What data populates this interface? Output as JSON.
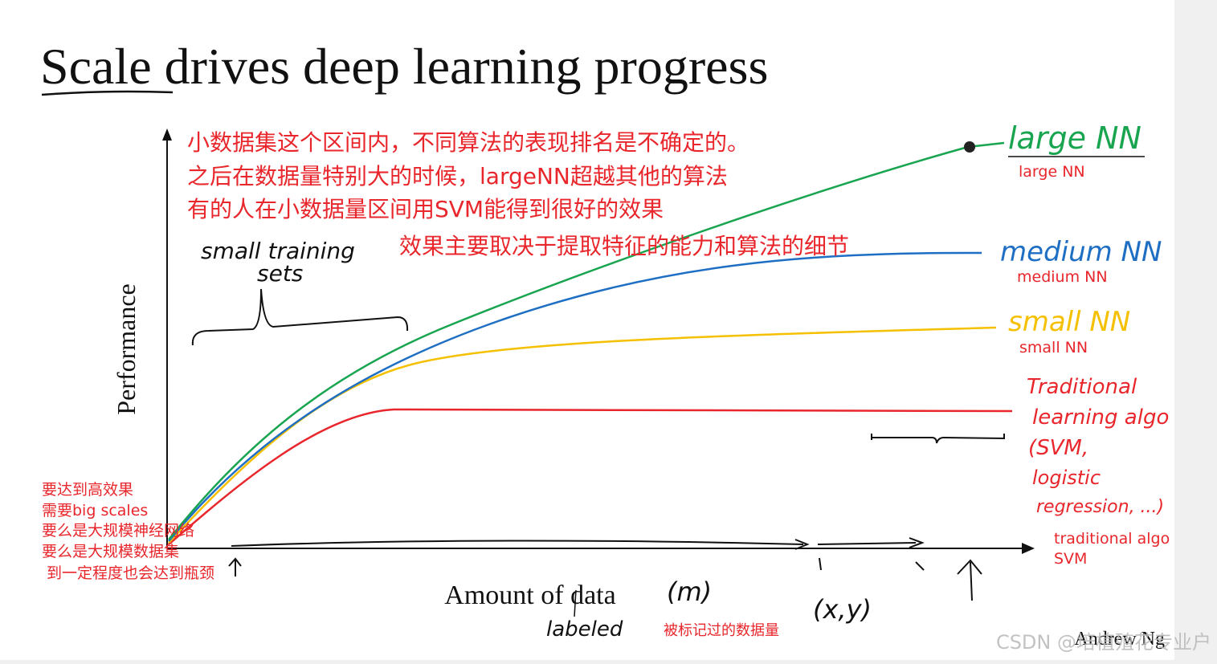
{
  "slide": {
    "title": "Scale drives deep learning progress",
    "y_axis_label": "Performance",
    "x_axis_label": "Amount of data",
    "x_axis_symbol": "(m)",
    "author": "Andrew Ng"
  },
  "handwritten": {
    "large": "large NN",
    "medium": "medium NN",
    "small": "small NN",
    "traditional": [
      "Traditional",
      "learning algo",
      "(SVM,",
      "logistic",
      "regression, ...)"
    ],
    "small_sets": [
      "small training",
      "sets"
    ],
    "labeled": "labeled",
    "pair": "(x,y)"
  },
  "notes": {
    "top": [
      "小数据集这个区间内，不同算法的表现排名是不确定的。",
      "之后在数据量特别大的时候，largeNN超越其他的算法",
      "有的人在小数据量区间用SVM能得到很好的效果",
      "效果主要取决于提取特征的能力和算法的细节"
    ],
    "curve_labels": [
      "large NN",
      "medium NN",
      "small NN",
      "traditional algo",
      "SVM"
    ],
    "left": [
      "要达到高效果",
      "需要big scales",
      "要么是大规模神经网络",
      "要么是大规模数据集",
      "到一定程度也会达到瓶颈"
    ],
    "bottom": "被标记过的数据量"
  },
  "watermark": "CSDN @培植殖花专业户"
}
